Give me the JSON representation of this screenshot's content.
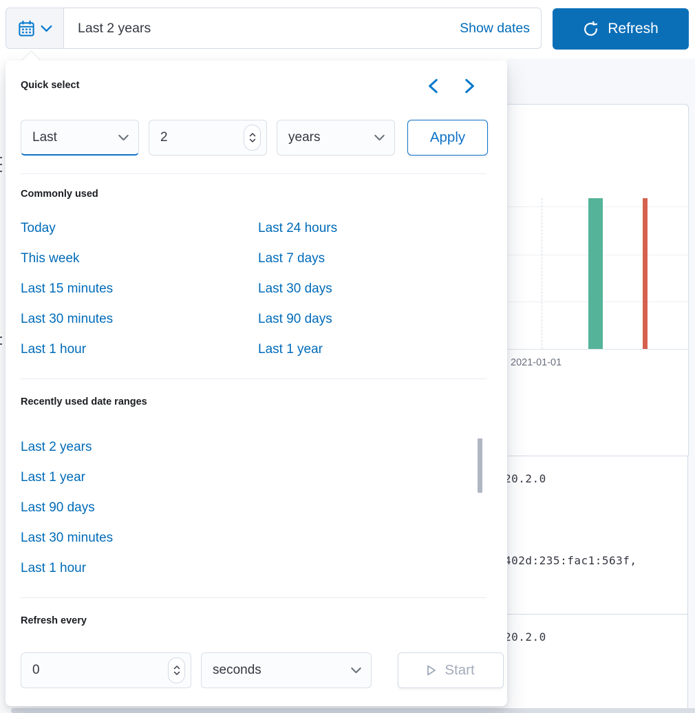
{
  "topbar": {
    "range_display": "Last 2 years",
    "show_dates_label": "Show dates",
    "refresh_label": "Refresh"
  },
  "quick_select": {
    "title": "Quick select",
    "tense": "Last",
    "amount": "2",
    "unit": "years",
    "apply_label": "Apply"
  },
  "commonly_used": {
    "title": "Commonly used",
    "column1": [
      "Today",
      "This week",
      "Last 15 minutes",
      "Last 30 minutes",
      "Last 1 hour"
    ],
    "column2": [
      "Last 24 hours",
      "Last 7 days",
      "Last 30 days",
      "Last 90 days",
      "Last 1 year"
    ]
  },
  "recently_used": {
    "title": "Recently used date ranges",
    "items": [
      "Last 2 years",
      "Last 1 year",
      "Last 90 days",
      "Last 30 minutes",
      "Last 1 hour"
    ]
  },
  "refresh_every": {
    "title": "Refresh every",
    "interval": "0",
    "unit": "seconds",
    "start_label": "Start"
  },
  "background": {
    "chart": {
      "type": "bar",
      "x_tick_label": "2021-01-01",
      "bars": [
        {
          "color": "#54b399"
        },
        {
          "color": "#d6604e"
        }
      ],
      "grid": "on"
    },
    "table_cells": [
      "20.2.0",
      "402d:235:fac1:563f,",
      "20.2.0"
    ]
  },
  "colors": {
    "primary": "#0077cc",
    "link": "#006bb8",
    "button_fill": "#0b6fb8",
    "text": "#343741",
    "title": "#1a1c21",
    "border": "#d3dae6",
    "bar_green": "#54b399",
    "bar_red": "#d6604e"
  }
}
